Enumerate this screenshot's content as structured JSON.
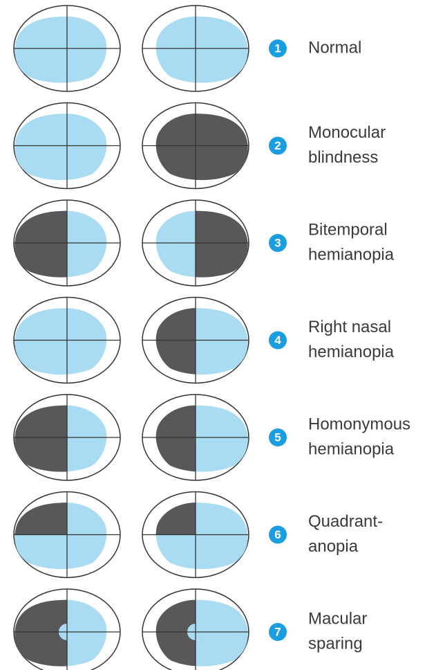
{
  "items": [
    {
      "number": "1",
      "label": [
        "Normal"
      ]
    },
    {
      "number": "2",
      "label": [
        "Monocular",
        "blindness"
      ]
    },
    {
      "number": "3",
      "label": [
        "Bitemporal",
        "hemianopia"
      ]
    },
    {
      "number": "4",
      "label": [
        "Right nasal",
        "hemianopia"
      ]
    },
    {
      "number": "5",
      "label": [
        "Homonymous",
        "hemianopia"
      ]
    },
    {
      "number": "6",
      "label": [
        "Quadrant-",
        "anopia"
      ]
    },
    {
      "number": "7",
      "label": [
        "Macular",
        "sparing"
      ]
    }
  ]
}
